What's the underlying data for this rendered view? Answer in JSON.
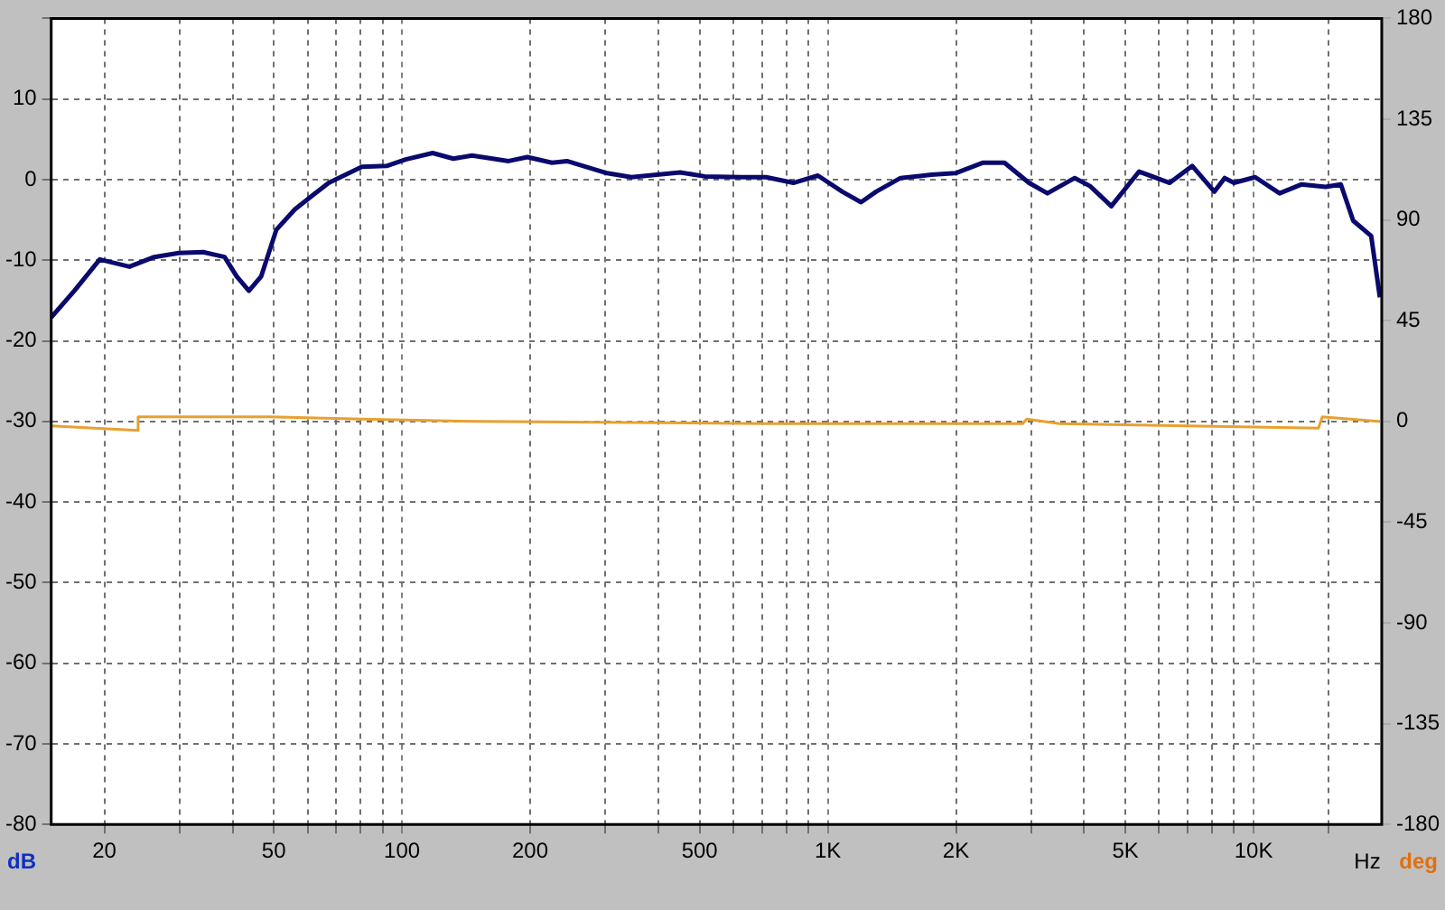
{
  "chart_data": {
    "type": "line",
    "xlabel": "Hz",
    "ylabel": "dB",
    "y2label": "deg",
    "log": "x",
    "grid": true,
    "legend": false,
    "marker": "none",
    "line_style": "solid",
    "xlim": [
      15,
      20000
    ],
    "xticks": [
      20,
      {
        "value": 30,
        "label": null
      },
      {
        "value": 40,
        "label": null
      },
      50,
      {
        "value": 60,
        "label": null
      },
      {
        "value": 70,
        "label": null
      },
      {
        "value": 80,
        "label": null
      },
      {
        "value": 90,
        "label": null
      },
      100,
      200,
      {
        "value": 300,
        "label": null
      },
      {
        "value": 400,
        "label": null
      },
      500,
      {
        "value": 600,
        "label": null
      },
      {
        "value": 700,
        "label": null
      },
      {
        "value": 800,
        "label": null
      },
      {
        "value": 900,
        "label": null
      },
      {
        "value": 1000,
        "label": "1K"
      },
      {
        "value": 2000,
        "label": "2K"
      },
      {
        "value": 3000,
        "label": null
      },
      {
        "value": 4000,
        "label": null
      },
      {
        "value": 5000,
        "label": "5K"
      },
      {
        "value": 6000,
        "label": null
      },
      {
        "value": 7000,
        "label": null
      },
      {
        "value": 8000,
        "label": null
      },
      {
        "value": 9000,
        "label": null
      },
      {
        "value": 10000,
        "label": "10K"
      },
      {
        "value": 15000,
        "label": null
      }
    ],
    "ylim": [
      -80,
      20
    ],
    "yticks": [
      -80,
      -70,
      -60,
      -50,
      -40,
      -30,
      -20,
      -10,
      0,
      10,
      {
        "value": 20,
        "label": null
      }
    ],
    "y2lim": [
      -180,
      180
    ],
    "y2ticks": [
      -180,
      -135,
      -90,
      -45,
      0,
      45,
      90,
      135,
      180
    ],
    "series": [
      {
        "color": "#0a0a6e",
        "x": [
          15,
          17,
          19.5,
          22.9,
          26.2,
          29.9,
          34.1,
          38.3,
          40.9,
          43.7,
          46.7,
          50.7,
          56,
          61.8,
          67.3,
          80.5,
          92,
          102,
          118,
          132,
          146,
          178,
          197,
          225,
          244,
          303,
          346,
          450,
          514,
          627,
          716,
          830,
          948,
          1082,
          1197,
          1298,
          1482,
          1750,
          1995,
          2317,
          2600,
          2967,
          3280,
          3802,
          4130,
          4634,
          5383,
          6353,
          7178,
          8091,
          8551,
          8995,
          10090,
          11510,
          12940,
          14760,
          16030,
          17140,
          18890,
          19800
        ],
        "values": [
          -17.1,
          -13.8,
          -9.9,
          -10.8,
          -9.6,
          -9.1,
          -9.0,
          -9.6,
          -12.0,
          -13.8,
          -12.0,
          -6.2,
          -3.7,
          -1.9,
          -0.4,
          1.6,
          1.7,
          2.5,
          3.3,
          2.6,
          3.0,
          2.3,
          2.8,
          2.1,
          2.3,
          0.8,
          0.3,
          0.9,
          0.4,
          0.3,
          0.3,
          -0.4,
          0.5,
          -1.5,
          -2.8,
          -1.5,
          0.2,
          0.6,
          0.8,
          2.1,
          2.1,
          -0.4,
          -1.7,
          0.2,
          -0.8,
          -3.3,
          1.0,
          -0.4,
          1.7,
          -1.5,
          0.2,
          -0.4,
          0.3,
          -1.7,
          -0.6,
          -0.9,
          -0.6,
          -5.1,
          -7.0,
          -14.6
        ]
      },
      {
        "color": "#e8a030",
        "axis": "y2",
        "x": [
          15,
          23.9,
          24.0,
          49,
          80.5,
          151,
          716,
          1750,
          1770,
          2871,
          2930,
          3500,
          7015,
          14200,
          14500,
          19800
        ],
        "values": [
          -2,
          -4,
          2,
          2,
          1,
          0,
          -1,
          -1,
          -1,
          -1,
          1,
          -1,
          -2,
          -3,
          2,
          0
        ]
      }
    ]
  }
}
